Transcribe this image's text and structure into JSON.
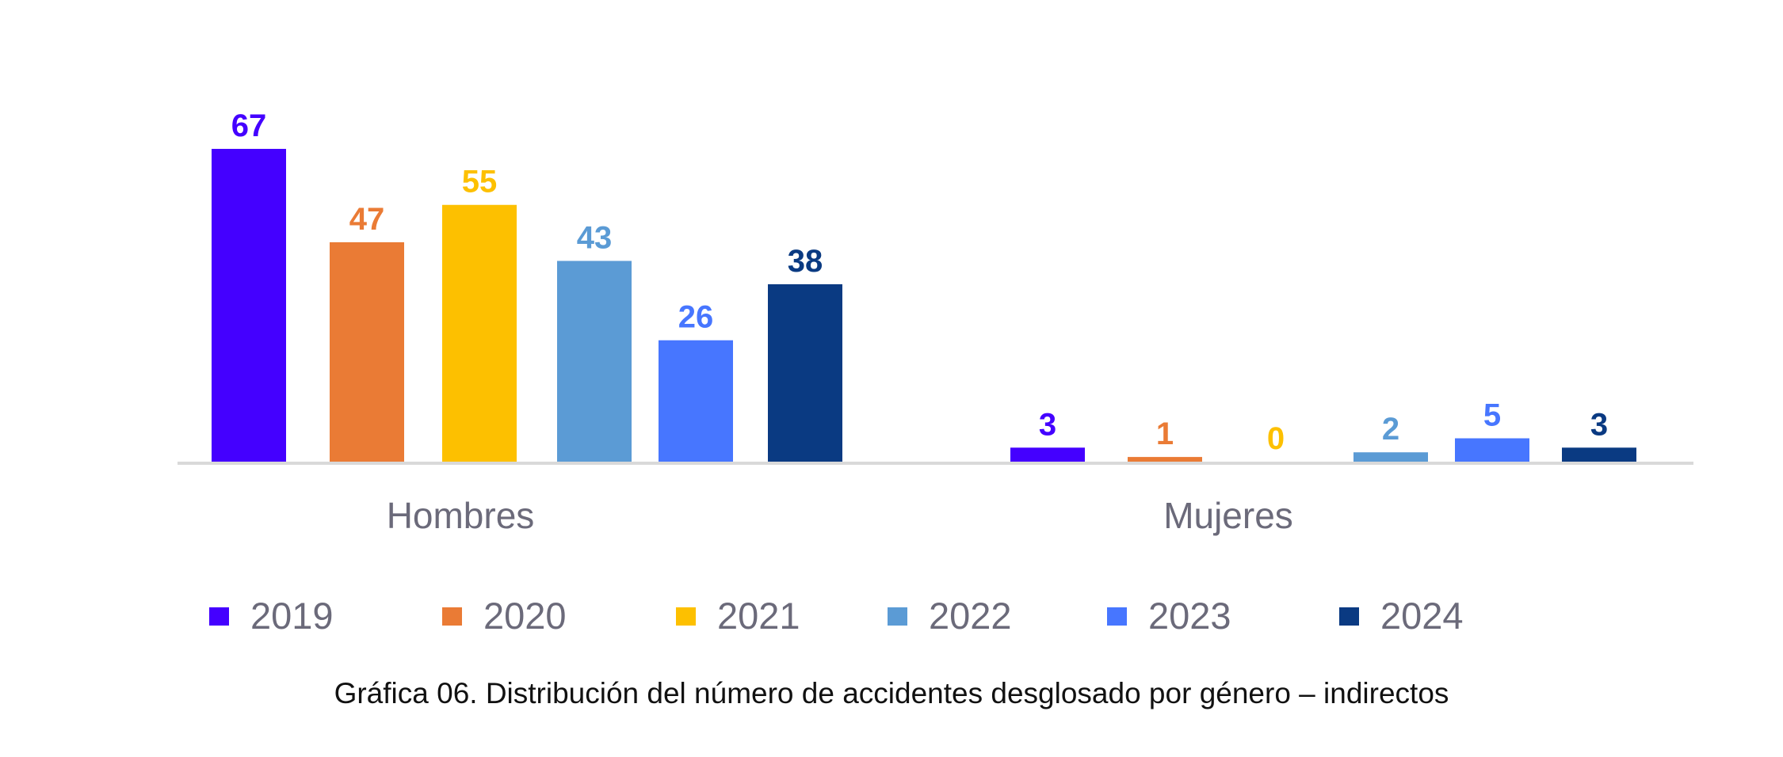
{
  "chart_data": {
    "type": "bar",
    "title": "",
    "xlabel": "",
    "ylabel": "",
    "ylim": [
      0,
      67
    ],
    "grid": false,
    "legend_position": "bottom",
    "categories": [
      "Hombres",
      "Mujeres"
    ],
    "series": [
      {
        "name": "2019",
        "color": "#4400ff",
        "values": [
          67,
          3
        ]
      },
      {
        "name": "2020",
        "color": "#ea7b35",
        "values": [
          47,
          1
        ]
      },
      {
        "name": "2021",
        "color": "#fdc000",
        "values": [
          55,
          0
        ]
      },
      {
        "name": "2022",
        "color": "#5b9bd5",
        "values": [
          43,
          2
        ]
      },
      {
        "name": "2023",
        "color": "#4776ff",
        "values": [
          26,
          5
        ]
      },
      {
        "name": "2024",
        "color": "#0a3a82",
        "values": [
          38,
          3
        ]
      }
    ],
    "axis_color": "#d9d9d9",
    "caption": "Gráfica 06. Distribución del número de accidentes desglosado por género – indirectos"
  }
}
